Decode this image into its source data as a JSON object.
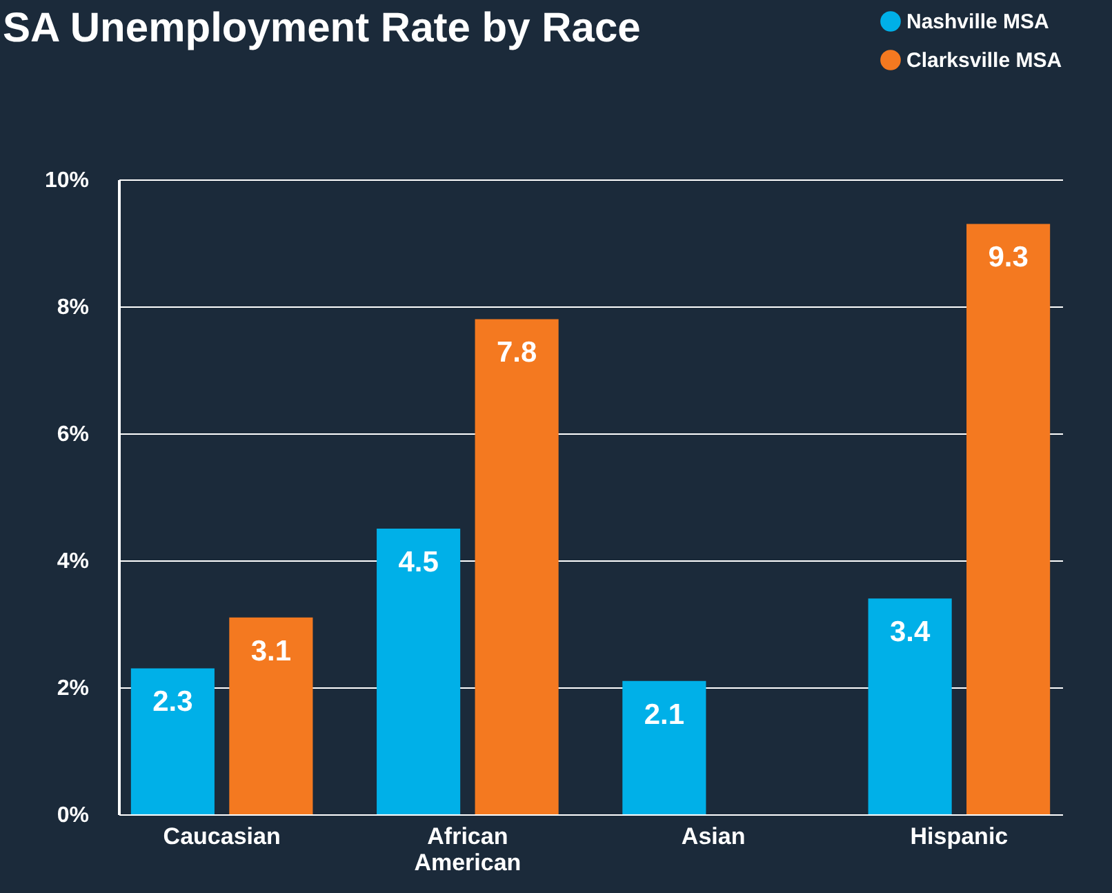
{
  "chart_data": {
    "type": "bar",
    "title": "SA Unemployment Rate by Race",
    "categories": [
      "Caucasian",
      "African American",
      "Asian",
      "Hispanic"
    ],
    "series": [
      {
        "name": "Nashville MSA",
        "color": "#00b0e8",
        "values": [
          2.3,
          4.5,
          2.1,
          3.4
        ]
      },
      {
        "name": "Clarksville MSA",
        "color": "#f47920",
        "values": [
          3.1,
          7.8,
          null,
          9.3
        ]
      }
    ],
    "ylim": [
      0,
      10
    ],
    "yticks": [
      {
        "value": 0,
        "label": "0%"
      },
      {
        "value": 2,
        "label": "2%"
      },
      {
        "value": 4,
        "label": "4%"
      },
      {
        "value": 6,
        "label": "6%"
      },
      {
        "value": 8,
        "label": "8%"
      },
      {
        "value": 10,
        "label": "10%"
      }
    ],
    "grid": "y",
    "legend": "top right",
    "data_labels": true
  }
}
